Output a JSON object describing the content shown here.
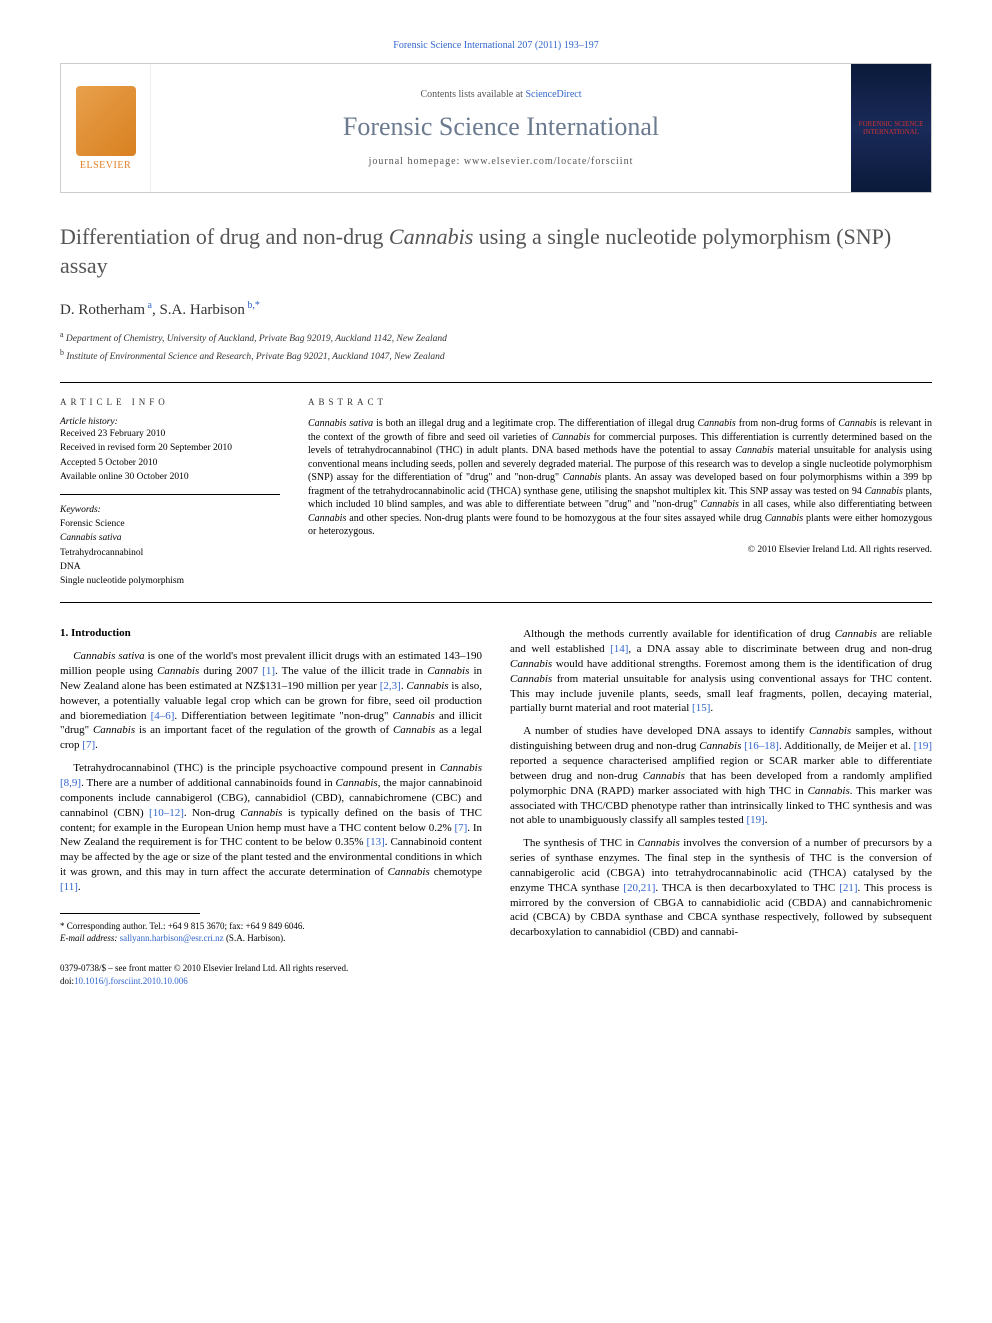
{
  "running_header": "Forensic Science International 207 (2011) 193–197",
  "header": {
    "elsevier_label": "ELSEVIER",
    "contents_prefix": "Contents lists available at ",
    "contents_link": "ScienceDirect",
    "journal_name": "Forensic Science International",
    "homepage_prefix": "journal homepage: ",
    "homepage_url": "www.elsevier.com/locate/forsciint",
    "cover_text": "FORENSIC SCIENCE INTERNATIONAL"
  },
  "title_parts": {
    "pre": "Differentiation of drug and non-drug ",
    "italic": "Cannabis",
    "post": " using a single nucleotide polymorphism (SNP) assay"
  },
  "authors_html": "D. Rotherham<sup> a</sup>, S.A. Harbison<sup> b,*</sup>",
  "affiliations": [
    {
      "sup": "a",
      "text": "Department of Chemistry, University of Auckland, Private Bag 92019, Auckland 1142, New Zealand"
    },
    {
      "sup": "b",
      "text": "Institute of Environmental Science and Research, Private Bag 92021, Auckland 1047, New Zealand"
    }
  ],
  "article_info": {
    "label": "ARTICLE INFO",
    "history_label": "Article history:",
    "history": [
      "Received 23 February 2010",
      "Received in revised form 20 September 2010",
      "Accepted 5 October 2010",
      "Available online 30 October 2010"
    ],
    "keywords_label": "Keywords:",
    "keywords": [
      {
        "text": "Forensic Science",
        "italic": false
      },
      {
        "text": "Cannabis sativa",
        "italic": true
      },
      {
        "text": "Tetrahydrocannabinol",
        "italic": false
      },
      {
        "text": "DNA",
        "italic": false
      },
      {
        "text": "Single nucleotide polymorphism",
        "italic": false
      }
    ]
  },
  "abstract": {
    "label": "ABSTRACT",
    "text": "Cannabis sativa is both an illegal drug and a legitimate crop. The differentiation of illegal drug Cannabis from non-drug forms of Cannabis is relevant in the context of the growth of fibre and seed oil varieties of Cannabis for commercial purposes. This differentiation is currently determined based on the levels of tetrahydrocannabinol (THC) in adult plants. DNA based methods have the potential to assay Cannabis material unsuitable for analysis using conventional means including seeds, pollen and severely degraded material. The purpose of this research was to develop a single nucleotide polymorphism (SNP) assay for the differentiation of \"drug\" and \"non-drug\" Cannabis plants. An assay was developed based on four polymorphisms within a 399 bp fragment of the tetrahydrocannabinolic acid (THCA) synthase gene, utilising the snapshot multiplex kit. This SNP assay was tested on 94 Cannabis plants, which included 10 blind samples, and was able to differentiate between \"drug\" and \"non-drug\" Cannabis in all cases, while also differentiating between Cannabis and other species. Non-drug plants were found to be homozygous at the four sites assayed while drug Cannabis plants were either homozygous or heterozygous.",
    "copyright": "© 2010 Elsevier Ireland Ltd. All rights reserved."
  },
  "section1_heading": "1. Introduction",
  "paragraphs_col1": [
    "Cannabis sativa is one of the world's most prevalent illicit drugs with an estimated 143–190 million people using Cannabis during 2007 [1]. The value of the illicit trade in Cannabis in New Zealand alone has been estimated at NZ$131–190 million per year [2,3]. Cannabis is also, however, a potentially valuable legal crop which can be grown for fibre, seed oil production and bioremediation [4–6]. Differentiation between legitimate \"non-drug\" Cannabis and illicit \"drug\" Cannabis is an important facet of the regulation of the growth of Cannabis as a legal crop [7].",
    "Tetrahydrocannabinol (THC) is the principle psychoactive compound present in Cannabis [8,9]. There are a number of additional cannabinoids found in Cannabis, the major cannabinoid components include cannabigerol (CBG), cannabidiol (CBD), cannabichromene (CBC) and cannabinol (CBN) [10–12]. Non-drug Cannabis is typically defined on the basis of THC content; for example in the European Union hemp must have a THC content below 0.2% [7]. In New Zealand the requirement is for THC content to be below 0.35% [13]. Cannabinoid content may be affected by the age or size of the plant tested and the environmental conditions in which it was grown, and this may in turn affect the accurate determination of Cannabis chemotype [11]."
  ],
  "paragraphs_col2": [
    "Although the methods currently available for identification of drug Cannabis are reliable and well established [14], a DNA assay able to discriminate between drug and non-drug Cannabis would have additional strengths. Foremost among them is the identification of drug Cannabis from material unsuitable for analysis using conventional assays for THC content. This may include juvenile plants, seeds, small leaf fragments, pollen, decaying material, partially burnt material and root material [15].",
    "A number of studies have developed DNA assays to identify Cannabis samples, without distinguishing between drug and non-drug Cannabis [16–18]. Additionally, de Meijer et al. [19] reported a sequence characterised amplified region or SCAR marker able to differentiate between drug and non-drug Cannabis that has been developed from a randomly amplified polymorphic DNA (RAPD) marker associated with high THC in Cannabis. This marker was associated with THC/CBD phenotype rather than intrinsically linked to THC synthesis and was not able to unambiguously classify all samples tested [19].",
    "The synthesis of THC in Cannabis involves the conversion of a number of precursors by a series of synthase enzymes. The final step in the synthesis of THC is the conversion of cannabigerolic acid (CBGA) into tetrahydrocannabinolic acid (THCA) catalysed by the enzyme THCA synthase [20,21]. THCA is then decarboxylated to THC [21]. This process is mirrored by the conversion of CBGA to cannabidiolic acid (CBDA) and cannabichromenic acid (CBCA) by CBDA synthase and CBCA synthase respectively, followed by subsequent decarboxylation to cannabidiol (CBD) and cannabi-"
  ],
  "footnote": {
    "corr_label": "* Corresponding author. Tel.: +64 9 815 3670; fax: +64 9 849 6046.",
    "email_label": "E-mail address: ",
    "email": "sallyann.harbison@esr.cri.nz",
    "email_suffix": " (S.A. Harbison)."
  },
  "bottom": {
    "issn_line": "0379-0738/$ – see front matter © 2010 Elsevier Ireland Ltd. All rights reserved.",
    "doi_prefix": "doi:",
    "doi": "10.1016/j.forsciint.2010.10.006"
  },
  "colors": {
    "link": "#3366cc",
    "journal_name": "#6b7a8f",
    "elsevier": "#e67e22"
  }
}
